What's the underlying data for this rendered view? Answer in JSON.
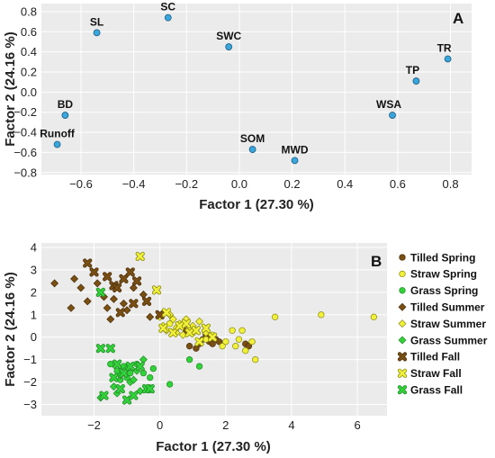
{
  "colors": {
    "panel_bg": "#ebebeb",
    "grid": "#ffffff",
    "point_A": "#3aa6dc",
    "tilled": "#7a4f14",
    "straw": "#f1f03a",
    "grass": "#33d13a"
  },
  "chart_data": [
    {
      "panel_label": "A",
      "type": "scatter",
      "xlabel": "Factor 1 (27.30 %)",
      "ylabel": "Factor 2 (24.16 %)",
      "xlim": [
        -0.75,
        0.88
      ],
      "ylim": [
        -0.82,
        0.88
      ],
      "xticks": [
        "−0.6",
        "−0.4",
        "−0.2",
        "0.0",
        "0.2",
        "0.4",
        "0.6",
        "0.8"
      ],
      "xtick_values": [
        -0.6,
        -0.4,
        -0.2,
        0.0,
        0.2,
        0.4,
        0.6,
        0.8
      ],
      "yticks": [
        "0.8",
        "0.6",
        "0.4",
        "0.2",
        "0.0",
        "−0.2",
        "−0.4",
        "−0.6",
        "−0.8"
      ],
      "ytick_values": [
        0.8,
        0.6,
        0.4,
        0.2,
        0.0,
        -0.2,
        -0.4,
        -0.6,
        -0.8
      ],
      "grid": true,
      "points": [
        {
          "label": "SC",
          "x": -0.27,
          "y": 0.74,
          "label_pos": "above"
        },
        {
          "label": "SL",
          "x": -0.54,
          "y": 0.59,
          "label_pos": "above"
        },
        {
          "label": "SWC",
          "x": -0.04,
          "y": 0.45,
          "label_pos": "above"
        },
        {
          "label": "TR",
          "x": 0.79,
          "y": 0.33,
          "label_pos": "above-left"
        },
        {
          "label": "TP",
          "x": 0.67,
          "y": 0.11,
          "label_pos": "above-left"
        },
        {
          "label": "WSA",
          "x": 0.58,
          "y": -0.23,
          "label_pos": "above-left"
        },
        {
          "label": "BD",
          "x": -0.66,
          "y": -0.23,
          "label_pos": "above"
        },
        {
          "label": "Runoff",
          "x": -0.69,
          "y": -0.52,
          "label_pos": "above"
        },
        {
          "label": "SOM",
          "x": 0.05,
          "y": -0.57,
          "label_pos": "above"
        },
        {
          "label": "MWD",
          "x": 0.21,
          "y": -0.68,
          "label_pos": "above"
        }
      ]
    },
    {
      "panel_label": "B",
      "type": "scatter",
      "xlabel": "Factor 1 (27.30 %)",
      "ylabel": "Factor 2 (24.16 %)",
      "xlim": [
        -3.6,
        6.9
      ],
      "ylim": [
        -3.5,
        4.2
      ],
      "xticks": [
        "−2",
        "0",
        "2",
        "4",
        "6"
      ],
      "xtick_values": [
        -2,
        0,
        2,
        4,
        6
      ],
      "yticks": [
        "4",
        "3",
        "2",
        "1",
        "0",
        "−1",
        "−2",
        "−3"
      ],
      "ytick_values": [
        4,
        3,
        2,
        1,
        0,
        -1,
        -2,
        -3
      ],
      "grid": true,
      "legend_position": "right",
      "series": [
        {
          "name": "Tilled Spring",
          "color": "tilled",
          "marker": "circle",
          "points": [
            [
              0.8,
              0.3
            ],
            [
              0.9,
              -0.4
            ],
            [
              1.1,
              -0.5
            ],
            [
              1.2,
              -0.3
            ],
            [
              1.3,
              -0.1
            ],
            [
              1.4,
              0.1
            ],
            [
              1.5,
              -0.2
            ],
            [
              1.6,
              -0.3
            ],
            [
              1.7,
              -0.1
            ],
            [
              1.8,
              -0.2
            ],
            [
              2.6,
              -0.3
            ],
            [
              2.7,
              -0.4
            ],
            [
              1.5,
              0.0
            ]
          ]
        },
        {
          "name": "Straw Spring",
          "color": "straw",
          "marker": "circle",
          "points": [
            [
              0.3,
              0.6
            ],
            [
              0.5,
              0.4
            ],
            [
              1.0,
              0.2
            ],
            [
              1.4,
              -0.1
            ],
            [
              1.6,
              0.1
            ],
            [
              1.9,
              -0.4
            ],
            [
              2.0,
              -0.2
            ],
            [
              2.2,
              0.3
            ],
            [
              2.3,
              -0.4
            ],
            [
              2.4,
              -0.1
            ],
            [
              2.5,
              0.3
            ],
            [
              2.6,
              -0.6
            ],
            [
              2.8,
              -0.2
            ],
            [
              2.9,
              -1.0
            ],
            [
              3.5,
              0.9
            ],
            [
              4.9,
              1.0
            ],
            [
              6.5,
              0.9
            ],
            [
              0.9,
              0.4
            ]
          ]
        },
        {
          "name": "Grass Spring",
          "color": "grass",
          "marker": "circle",
          "points": [
            [
              -1.5,
              -1.2
            ],
            [
              -1.3,
              -1.5
            ],
            [
              -1.1,
              -1.3
            ],
            [
              -1.0,
              -1.8
            ],
            [
              -0.9,
              -1.6
            ],
            [
              -0.7,
              -1.2
            ],
            [
              -0.5,
              -1.6
            ],
            [
              -0.3,
              -1.8
            ],
            [
              -0.2,
              -1.4
            ],
            [
              0.3,
              -2.1
            ],
            [
              0.9,
              -1.0
            ],
            [
              1.2,
              -1.3
            ],
            [
              -1.2,
              -1.9
            ]
          ]
        },
        {
          "name": "Tilled Summer",
          "color": "tilled",
          "marker": "diamond",
          "points": [
            [
              -3.2,
              2.4
            ],
            [
              -2.7,
              1.3
            ],
            [
              -2.6,
              2.6
            ],
            [
              -2.4,
              2.2
            ],
            [
              -2.2,
              1.6
            ],
            [
              -1.9,
              2.4
            ],
            [
              -1.7,
              1.8
            ],
            [
              -1.6,
              1.3
            ],
            [
              -1.4,
              1.7
            ],
            [
              -1.1,
              1.5
            ],
            [
              -1.0,
              1.2
            ],
            [
              -0.8,
              2.2
            ],
            [
              -0.5,
              1.9
            ],
            [
              -0.3,
              0.9
            ],
            [
              -1.5,
              0.8
            ]
          ]
        },
        {
          "name": "Straw Summer",
          "color": "straw",
          "marker": "diamond",
          "points": [
            [
              0.0,
              0.9
            ],
            [
              0.1,
              0.5
            ],
            [
              0.2,
              0.3
            ],
            [
              0.4,
              0.8
            ],
            [
              0.5,
              0.2
            ],
            [
              0.6,
              0.6
            ],
            [
              0.8,
              0.8
            ],
            [
              1.0,
              0.5
            ],
            [
              1.2,
              0.7
            ],
            [
              1.4,
              0.2
            ],
            [
              0.3,
              1.0
            ],
            [
              0.7,
              0.1
            ]
          ]
        },
        {
          "name": "Grass Summer",
          "color": "grass",
          "marker": "diamond",
          "points": [
            [
              -1.8,
              -2.7
            ],
            [
              -1.4,
              -2.2
            ],
            [
              -1.2,
              -1.7
            ],
            [
              -1.0,
              -1.4
            ],
            [
              -0.9,
              -2.0
            ],
            [
              -0.8,
              -1.9
            ],
            [
              -0.6,
              -2.4
            ],
            [
              -0.5,
              -1.0
            ],
            [
              -1.3,
              -2.5
            ],
            [
              -0.7,
              -1.5
            ]
          ]
        },
        {
          "name": "Tilled Fall",
          "color": "tilled",
          "marker": "x",
          "points": [
            [
              -2.2,
              3.3
            ],
            [
              -2.0,
              2.9
            ],
            [
              -1.6,
              2.7
            ],
            [
              -1.4,
              2.3
            ],
            [
              -1.3,
              2.2
            ],
            [
              -1.1,
              2.6
            ],
            [
              -0.9,
              2.9
            ],
            [
              -0.7,
              2.5
            ],
            [
              -0.4,
              1.6
            ],
            [
              0.0,
              1.0
            ],
            [
              -1.2,
              1.1
            ],
            [
              -0.8,
              1.5
            ]
          ]
        },
        {
          "name": "Straw Fall",
          "color": "straw",
          "marker": "x",
          "points": [
            [
              -0.6,
              3.6
            ],
            [
              -0.1,
              2.1
            ],
            [
              0.1,
              0.4
            ],
            [
              0.4,
              0.2
            ],
            [
              0.6,
              0.5
            ],
            [
              0.9,
              0.2
            ],
            [
              1.1,
              0.3
            ],
            [
              1.2,
              -0.2
            ],
            [
              1.4,
              0.4
            ],
            [
              1.6,
              0.0
            ],
            [
              0.2,
              1.1
            ],
            [
              0.8,
              0.6
            ]
          ]
        },
        {
          "name": "Grass Fall",
          "color": "grass",
          "marker": "x",
          "points": [
            [
              -1.8,
              2.0
            ],
            [
              -1.8,
              -0.5
            ],
            [
              -1.5,
              -0.5
            ],
            [
              -1.3,
              -1.2
            ],
            [
              -1.2,
              -2.3
            ],
            [
              -1.1,
              -1.6
            ],
            [
              -1.0,
              -2.8
            ],
            [
              -0.9,
              -1.3
            ],
            [
              -0.8,
              -2.6
            ],
            [
              -0.6,
              -1.3
            ],
            [
              -0.4,
              -2.3
            ],
            [
              -0.3,
              -2.3
            ],
            [
              -1.7,
              -2.6
            ],
            [
              -1.4,
              -1.8
            ]
          ]
        }
      ]
    }
  ]
}
